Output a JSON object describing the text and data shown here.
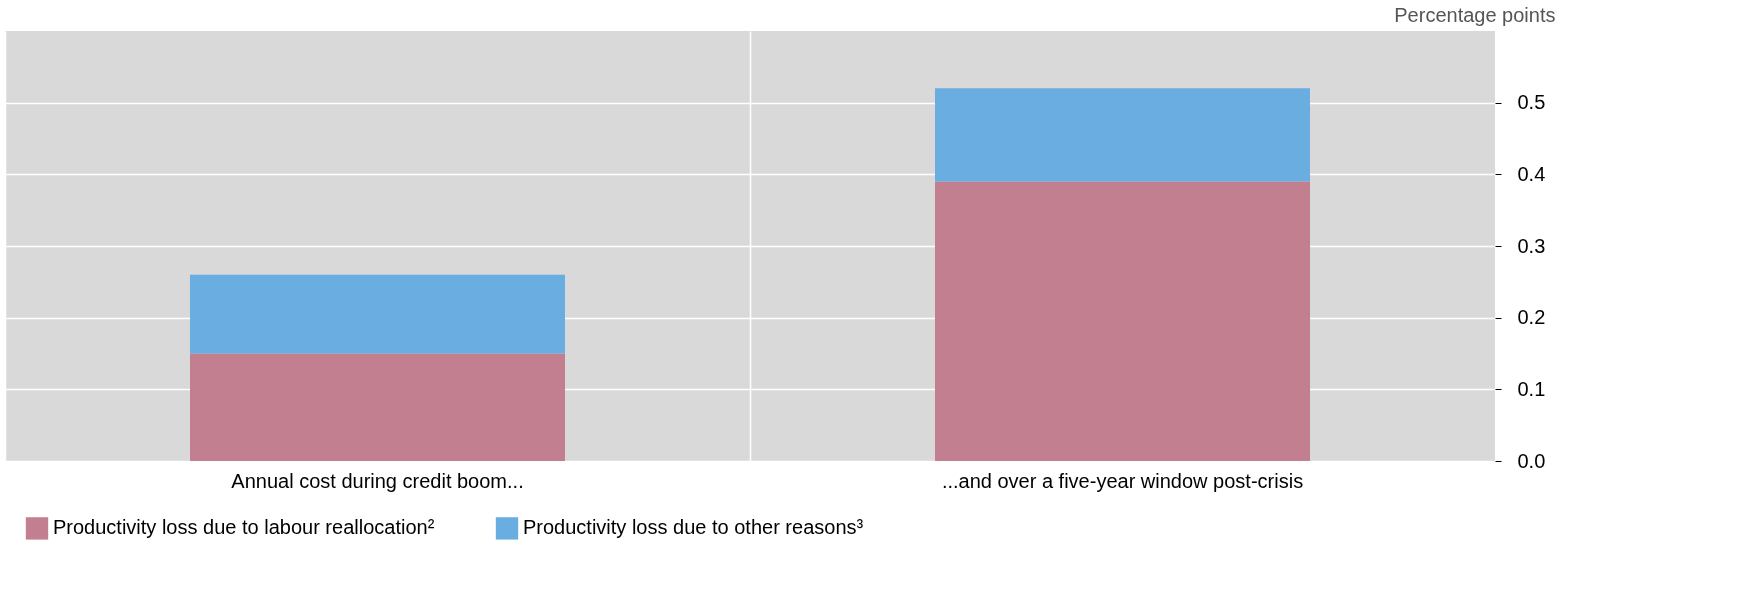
{
  "chart_data": {
    "type": "bar",
    "stacked": true,
    "ylabel": "Percentage points",
    "categories": [
      "Annual cost during credit boom...",
      "...and over a five-year window post-crisis"
    ],
    "series": [
      {
        "name": "Productivity loss due to labour reallocation²",
        "color": "#c27f8f",
        "values": [
          0.15,
          0.39
        ]
      },
      {
        "name": "Productivity loss due to other reasons³",
        "color": "#6aade0",
        "values": [
          0.11,
          0.13
        ]
      }
    ],
    "ylim": [
      0,
      0.6
    ],
    "yticks": [
      {
        "value": 0,
        "label": "0.0"
      },
      0.1,
      0.2,
      0.3,
      0.4,
      0.5
    ],
    "grid": true,
    "legend": "bottom left"
  }
}
